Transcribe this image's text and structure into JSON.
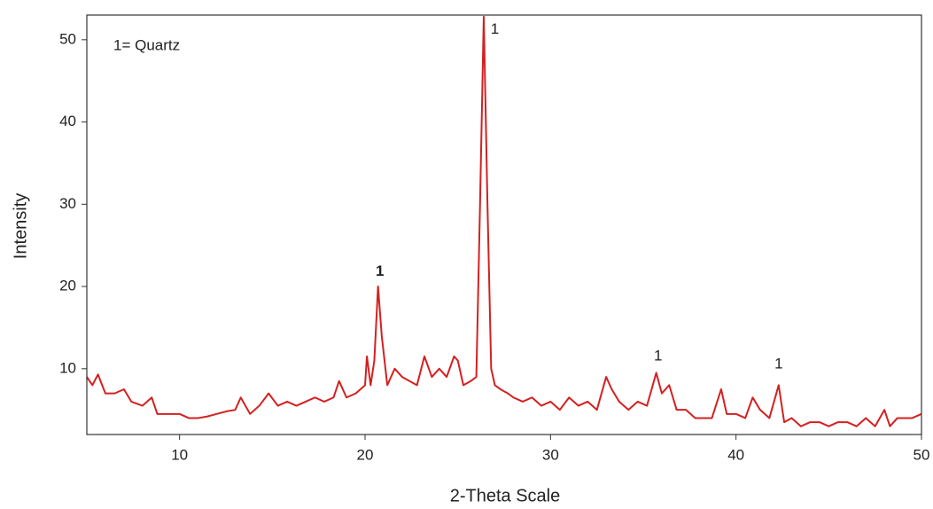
{
  "chart_data": {
    "type": "line",
    "x_label": "2-Theta Scale",
    "y_label": "Intensity",
    "note": "1= Quartz",
    "x": [
      5,
      5.3,
      5.6,
      6,
      6.5,
      7,
      7.4,
      8,
      8.5,
      8.8,
      9.3,
      10,
      10.5,
      11,
      11.5,
      12,
      12.5,
      13,
      13.3,
      13.8,
      14.3,
      14.8,
      15.3,
      15.8,
      16.3,
      16.8,
      17.3,
      17.8,
      18.3,
      18.6,
      19,
      19.5,
      20,
      20.1,
      20.3,
      20.5,
      20.7,
      20.9,
      21.2,
      21.6,
      22,
      22.4,
      22.8,
      23.2,
      23.6,
      24,
      24.4,
      24.8,
      25,
      25.3,
      25.7,
      26,
      26.2,
      26.4,
      26.6,
      26.8,
      27,
      27.3,
      27.7,
      28,
      28.5,
      29,
      29.5,
      30,
      30.5,
      31,
      31.5,
      32,
      32.5,
      33,
      33.3,
      33.7,
      34.2,
      34.7,
      35.2,
      35.7,
      36,
      36.4,
      36.8,
      37.3,
      37.8,
      38.2,
      38.7,
      39.2,
      39.5,
      40,
      40.5,
      40.9,
      41.3,
      41.8,
      42.3,
      42.6,
      43,
      43.5,
      44,
      44.5,
      45,
      45.5,
      46,
      46.5,
      47,
      47.5,
      48,
      48.3,
      48.7,
      49,
      49.5,
      50
    ],
    "series": [
      {
        "color": "#d42020",
        "values": [
          9,
          8,
          9.3,
          7,
          7,
          7.5,
          6,
          5.5,
          6.5,
          4.5,
          4.5,
          4.5,
          4,
          4,
          4.2,
          4.5,
          4.8,
          5,
          6.5,
          4.5,
          5.5,
          7,
          5.5,
          6,
          5.5,
          6,
          6.5,
          6,
          6.5,
          8.5,
          6.5,
          7,
          8,
          11.5,
          8,
          11,
          20,
          14,
          8,
          10,
          9,
          8.5,
          8,
          11.5,
          9,
          10,
          9,
          11.5,
          11,
          8,
          8.5,
          9,
          30,
          52.8,
          30,
          10,
          8,
          7.5,
          7,
          6.5,
          6,
          6.5,
          5.5,
          6,
          5,
          6.5,
          5.5,
          6,
          5,
          9,
          7.5,
          6,
          5,
          6,
          5.5,
          9.5,
          7,
          8,
          5,
          5,
          4,
          4,
          4,
          7.5,
          4.5,
          4.5,
          4,
          6.5,
          5,
          4,
          8,
          3.5,
          4,
          3,
          3.5,
          3.5,
          3,
          3.5,
          3.5,
          3,
          4,
          3,
          5,
          3,
          4,
          4,
          4,
          4.5
        ]
      }
    ],
    "annotations": [
      {
        "text": "1",
        "x": 20.8,
        "y": 21.8,
        "bold": true
      },
      {
        "text": "1",
        "x": 27.0,
        "y": 51.2,
        "bold": false
      },
      {
        "text": "1",
        "x": 35.8,
        "y": 11.5,
        "bold": false
      },
      {
        "text": "1",
        "x": 42.3,
        "y": 10.5,
        "bold": false
      }
    ],
    "xlim": [
      5,
      50
    ],
    "ylim": [
      2,
      53
    ],
    "xticks": [
      10,
      20,
      30,
      40,
      50
    ],
    "yticks": [
      10,
      20,
      30,
      40,
      50
    ],
    "grid": false
  }
}
